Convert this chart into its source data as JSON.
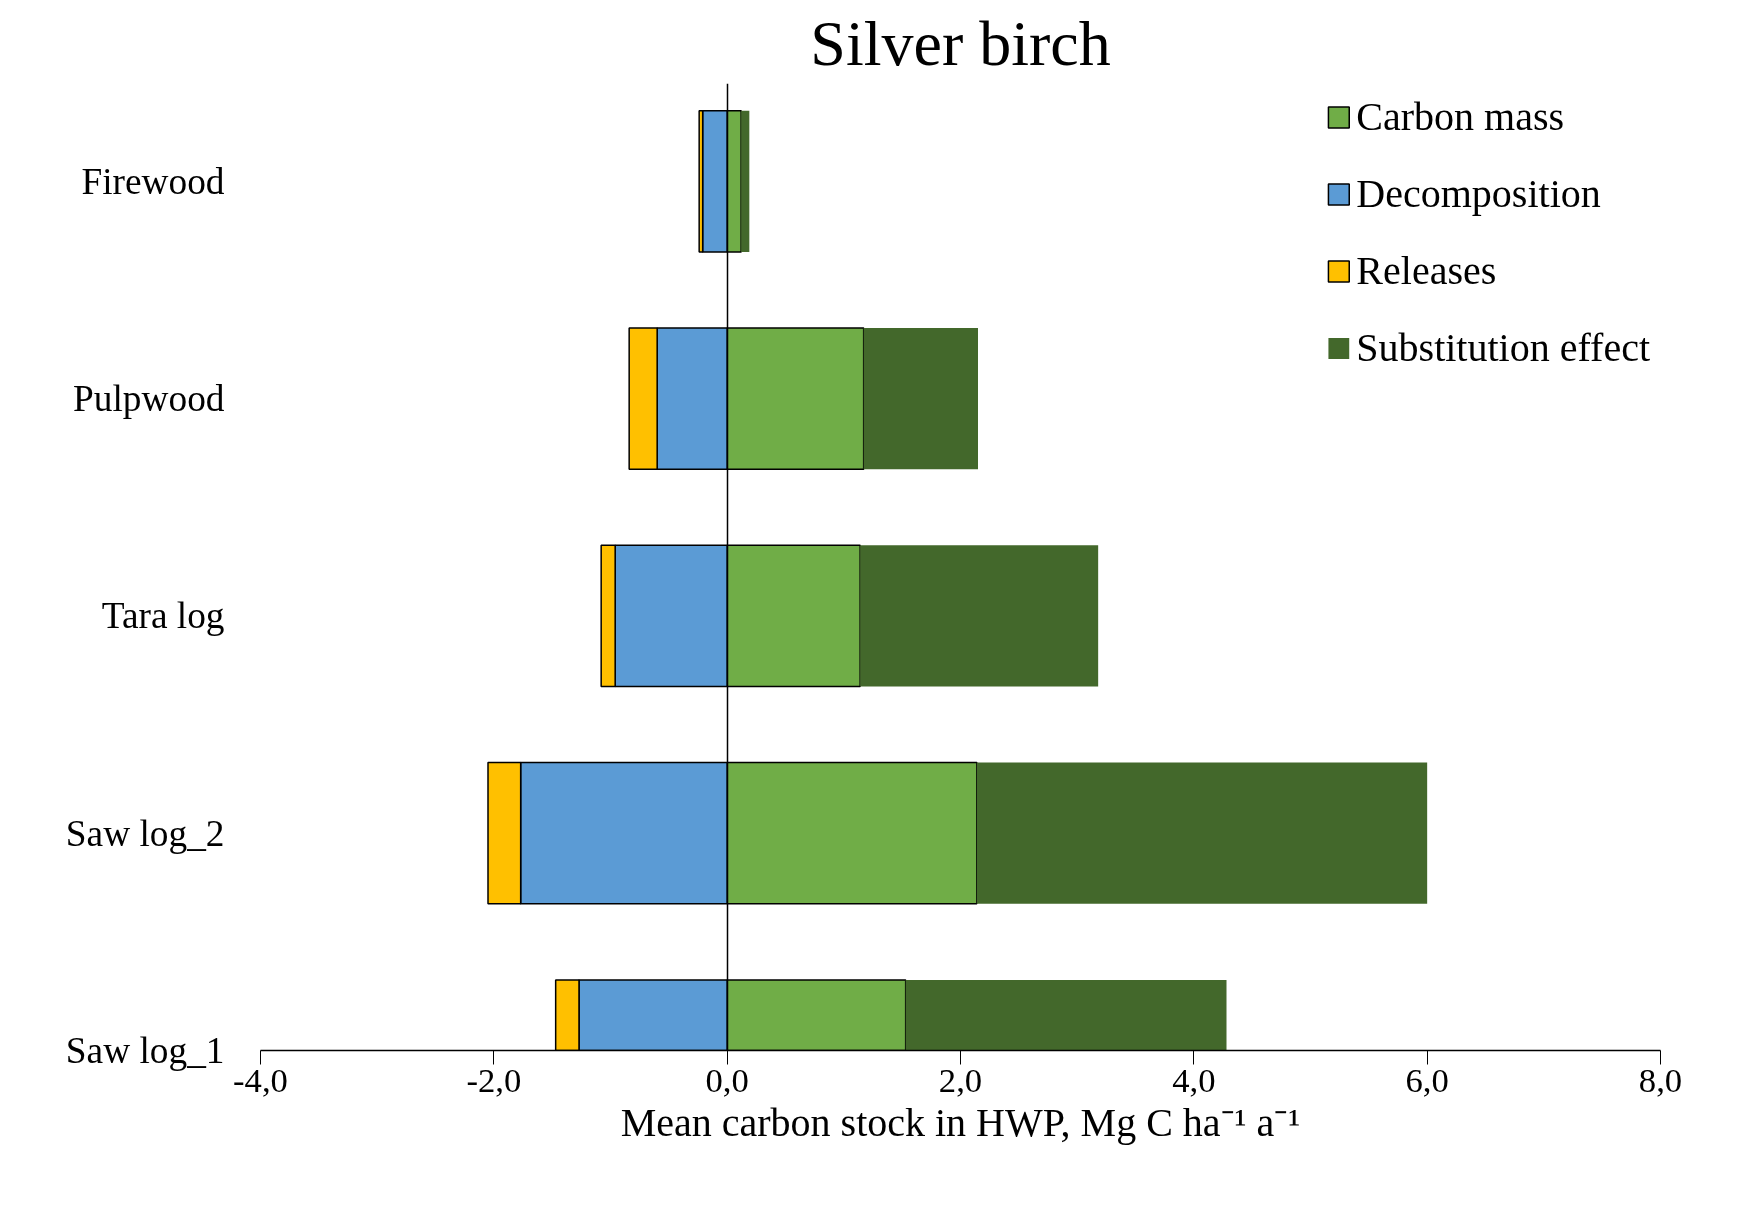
{
  "chart_data": {
    "type": "bar",
    "orientation": "horizontal",
    "stacked": true,
    "title": "Silver birch",
    "xlabel": "Mean carbon stock in HWP, Mg C ha⁻¹ a⁻¹",
    "categories": [
      "Firewood",
      "Pulpwood",
      "Tara log",
      "Saw log_2",
      "Saw log_1"
    ],
    "series": [
      {
        "name": "Carbon mass",
        "color": "#70ad47",
        "values": [
          0.12,
          1.17,
          1.14,
          2.14,
          1.53
        ]
      },
      {
        "name": "Decomposition",
        "color": "#5b9bd5",
        "values": [
          -0.21,
          -0.6,
          -0.96,
          -1.77,
          -1.27
        ]
      },
      {
        "name": "Releases",
        "color": "#ffc000",
        "values": [
          -0.03,
          -0.24,
          -0.12,
          -0.28,
          -0.2
        ]
      },
      {
        "name": "Substitution effect",
        "color": "#43682b",
        "values": [
          0.07,
          0.98,
          2.04,
          3.86,
          2.75
        ]
      }
    ],
    "xlim": [
      -4,
      8
    ],
    "xticks": [
      {
        "value": -4,
        "label": "-4,0"
      },
      {
        "value": -2,
        "label": "-2,0"
      },
      {
        "value": 0,
        "label": "0,0"
      },
      {
        "value": 2,
        "label": "2,0"
      },
      {
        "value": 4,
        "label": "4,0"
      },
      {
        "value": 6,
        "label": "6,0"
      },
      {
        "value": 8,
        "label": "8,0"
      }
    ],
    "legend": "top right"
  }
}
